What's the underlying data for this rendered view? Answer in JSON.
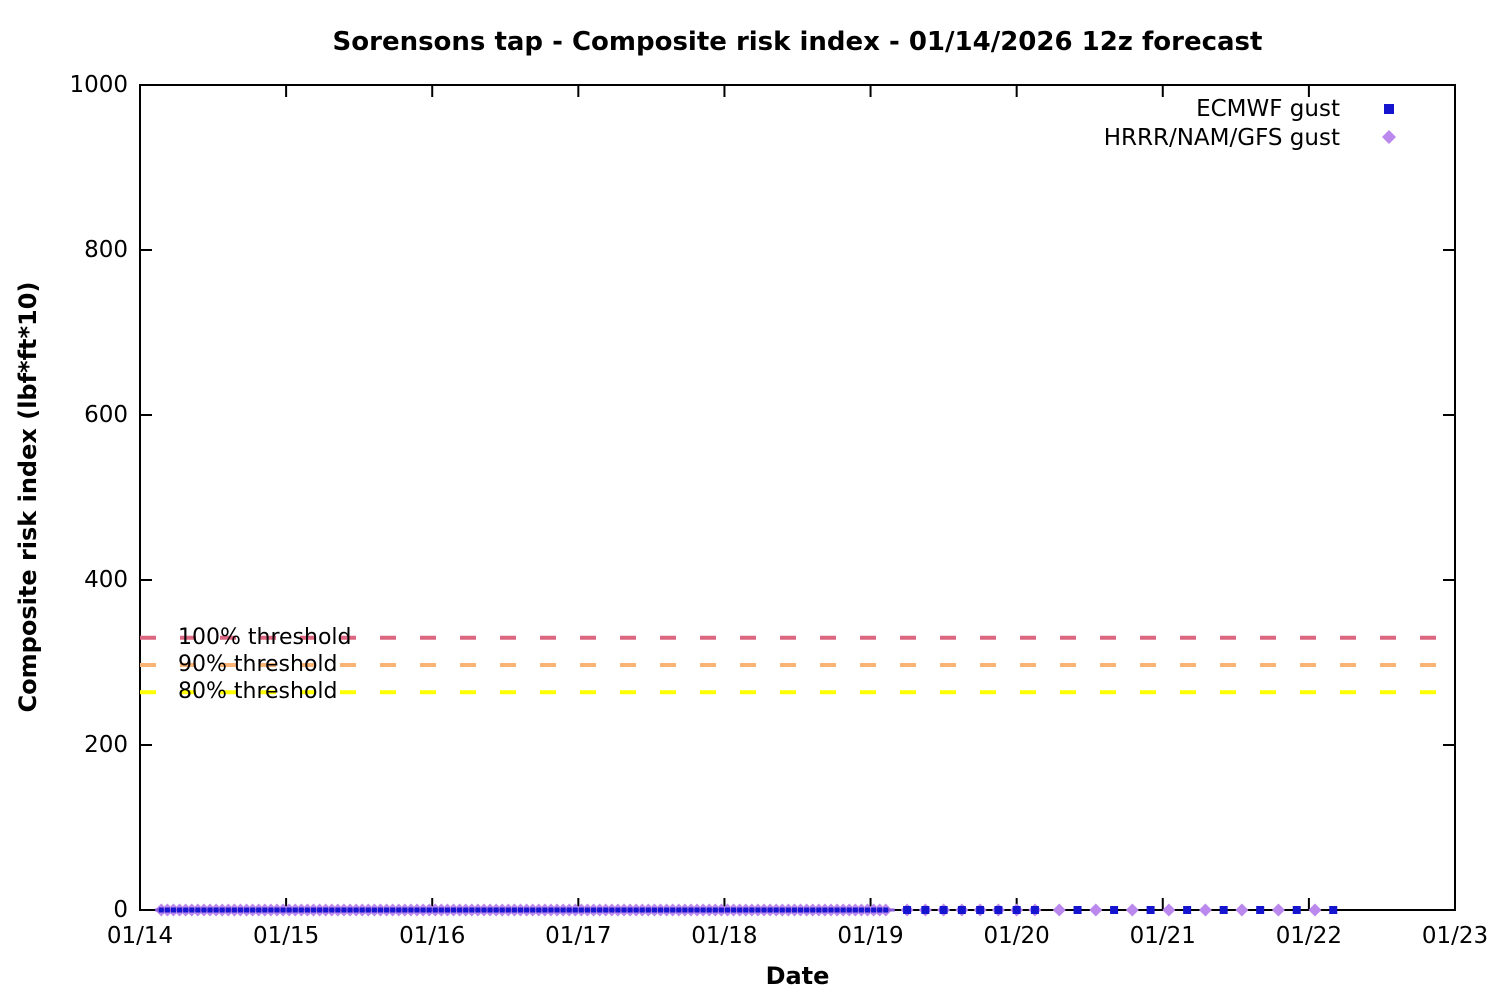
{
  "chart_data": {
    "type": "scatter",
    "title": "Sorensons tap - Composite risk index - 01/14/2026 12z forecast",
    "xlabel": "Date",
    "ylabel": "Composite risk index (lbf*ft*10)",
    "x_axis": {
      "tick_labels": [
        "01/14",
        "01/15",
        "01/16",
        "01/17",
        "01/18",
        "01/19",
        "01/20",
        "01/21",
        "01/22",
        "01/23"
      ],
      "range_days": [
        0,
        9
      ],
      "unit": "hours since 01/14 00:00"
    },
    "y_axis": {
      "ticks": [
        0,
        200,
        400,
        600,
        800,
        1000
      ],
      "range": [
        0,
        1000
      ]
    },
    "legend": [
      {
        "label": "ECMWF gust",
        "marker": "square",
        "color": "#1515d0"
      },
      {
        "label": "HRRR/NAM/GFS gust",
        "marker": "diamond",
        "color": "#bb88ee"
      }
    ],
    "thresholds": [
      {
        "label": "100% threshold",
        "value": 330,
        "color": "#dd6680"
      },
      {
        "label": "90% threshold",
        "value": 297,
        "color": "#fab473"
      },
      {
        "label": "80% threshold",
        "value": 264,
        "color": "#ffff00"
      }
    ],
    "series": [
      {
        "name": "ECMWF gust",
        "marker": "square",
        "color": "#1515d0",
        "y_value": 0,
        "segments_hours": [
          {
            "from": 3.5,
            "to": 123,
            "step": 1
          },
          {
            "from": 126,
            "to": 148,
            "step": 3
          },
          {
            "from": 154,
            "to": 196,
            "step": 6
          }
        ]
      },
      {
        "name": "HRRR/NAM/GFS gust",
        "marker": "diamond",
        "color": "#bb88ee",
        "y_value": 0,
        "segments_hours": [
          {
            "from": 3.5,
            "to": 123,
            "step": 1
          },
          {
            "from": 126,
            "to": 148,
            "step": 3
          },
          {
            "from": 151,
            "to": 193,
            "step": 6
          }
        ]
      }
    ]
  }
}
